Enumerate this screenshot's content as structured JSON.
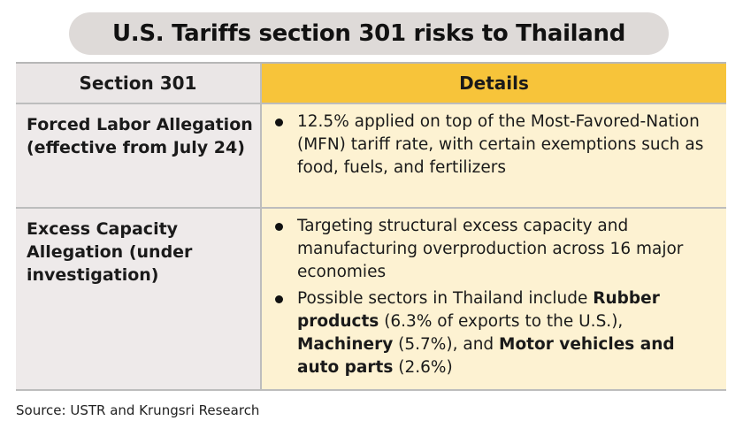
{
  "title": "U.S. Tariffs section 301 risks to Thailand",
  "table": {
    "headers": {
      "left": "Section 301",
      "right": "Details"
    },
    "rows": [
      {
        "topic": "Forced Labor Allegation (effective from July 24)",
        "bullets": [
          {
            "parts": [
              {
                "text": "12.5% applied on top of the Most-Favored-Nation (MFN) tariff rate, with certain exemptions such as food, fuels, and fertilizers"
              }
            ]
          }
        ]
      },
      {
        "topic": "Excess Capacity Allegation (under investigation)",
        "bullets": [
          {
            "parts": [
              {
                "text": "Targeting structural excess capacity and manufacturing overproduction across 16 major economies"
              }
            ]
          },
          {
            "parts": [
              {
                "text": "Possible sectors in Thailand include "
              },
              {
                "text": "Rubber products",
                "bold": true
              },
              {
                "text": " (6.3% of exports to the U.S.), "
              },
              {
                "text": "Machinery",
                "bold": true
              },
              {
                "text": " (5.7%), and "
              },
              {
                "text": "Motor vehicles and auto parts",
                "bold": true
              },
              {
                "text": " (2.6%)"
              }
            ]
          }
        ]
      }
    ]
  },
  "source": "Source: USTR and Krungsri Research"
}
